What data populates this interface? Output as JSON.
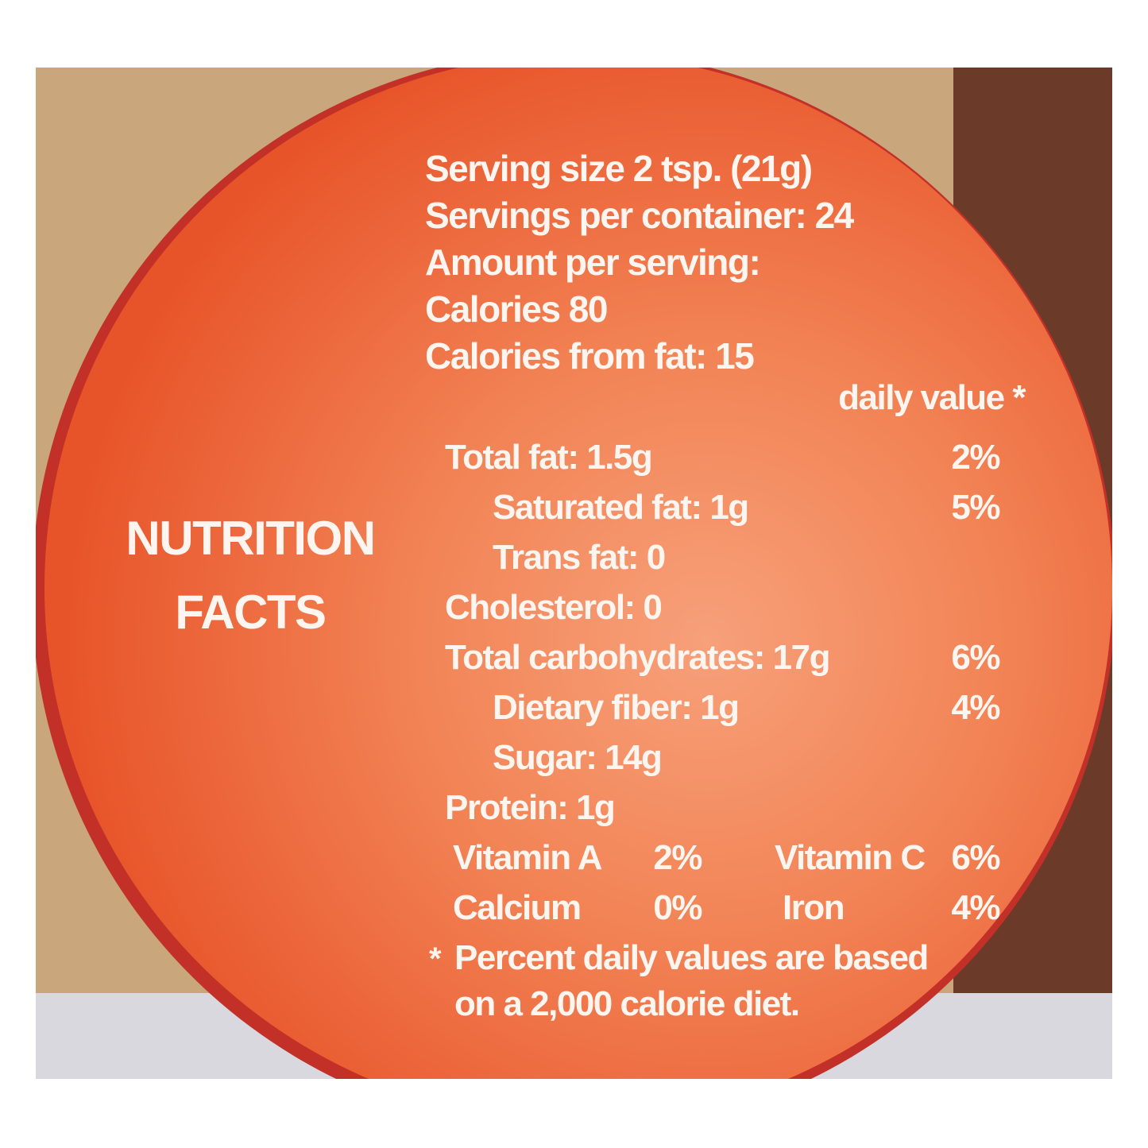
{
  "panel": {
    "title_lines": [
      "NUTRITION",
      "FACTS"
    ],
    "header_lines": [
      "Serving size 2 tsp. (21g)",
      "Servings per container: 24",
      "Amount per serving:",
      "Calories 80",
      "Calories from fat: 15"
    ],
    "daily_value_heading": "daily value *",
    "rows": [
      {
        "label": "Total fat:  1.5g",
        "percent": "2%",
        "sub": [
          {
            "label": "Saturated fat: 1g",
            "percent": "5%"
          },
          {
            "label": "Trans fat:  0"
          }
        ]
      },
      {
        "label": "Cholesterol:  0"
      },
      {
        "label": "Total carbohydrates: 17g",
        "percent": "6%",
        "sub": [
          {
            "label": "Dietary fiber: 1g",
            "percent": "4%"
          },
          {
            "label": "Sugar: 14g"
          }
        ]
      },
      {
        "label": "Protein: 1g"
      }
    ],
    "vitamins": [
      [
        "Vitamin A",
        "2%",
        "Vitamin C",
        "6%"
      ],
      [
        "Calcium",
        "0%",
        "Iron",
        "4%"
      ]
    ],
    "footnote": {
      "mark": "*",
      "lines": [
        "Percent daily values are based",
        "on a 2,000 calorie diet."
      ]
    }
  }
}
